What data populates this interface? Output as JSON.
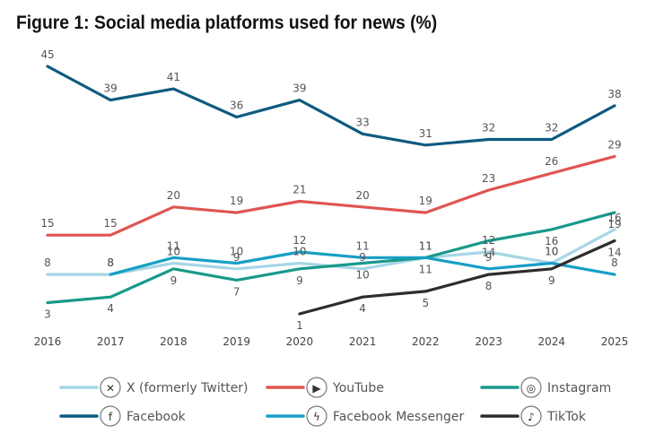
{
  "chart_data": {
    "type": "line",
    "title": "Figure 1: Social media platforms used for news (%)",
    "x": [
      "2016",
      "2017",
      "2018",
      "2019",
      "2020",
      "2021",
      "2022",
      "2023",
      "2024",
      "2025"
    ],
    "series": [
      {
        "name": "Facebook",
        "color": "#0e5a80",
        "values": [
          45,
          39,
          41,
          36,
          39,
          33,
          31,
          32,
          32,
          38
        ]
      },
      {
        "name": "YouTube",
        "color": "#e05552",
        "values": [
          15,
          15,
          20,
          19,
          21,
          20,
          19,
          23,
          26,
          29
        ]
      },
      {
        "name": "Instagram",
        "color": "#18998a",
        "values": [
          3,
          4,
          9,
          7,
          9,
          10,
          11,
          14,
          16,
          19
        ]
      },
      {
        "name": "X (formerly Twitter)",
        "color": "#a6d6e6",
        "values": [
          8,
          8,
          10,
          9,
          10,
          9,
          11,
          12,
          10,
          16
        ]
      },
      {
        "name": "Facebook Messenger",
        "color": "#179fc6",
        "values": [
          null,
          8,
          11,
          10,
          12,
          11,
          11,
          9,
          10,
          8
        ]
      },
      {
        "name": "TikTok",
        "color": "#2d2d2d",
        "values": [
          null,
          null,
          null,
          null,
          1,
          4,
          5,
          8,
          9,
          14
        ]
      }
    ],
    "legend": [
      {
        "name": "X (formerly Twitter)",
        "icon": "x-logo-icon",
        "color": "#a6d6e6"
      },
      {
        "name": "YouTube",
        "icon": "youtube-logo-icon",
        "color": "#e05552"
      },
      {
        "name": "Instagram",
        "icon": "instagram-logo-icon",
        "color": "#18998a"
      },
      {
        "name": "Facebook",
        "icon": "facebook-logo-icon",
        "color": "#0e5a80"
      },
      {
        "name": "Facebook Messenger",
        "icon": "messenger-logo-icon",
        "color": "#179fc6"
      },
      {
        "name": "TikTok",
        "icon": "tiktok-logo-icon",
        "color": "#2d2d2d"
      }
    ],
    "legend_placement": "bottom",
    "grid": false,
    "ylim": [
      0,
      46
    ]
  }
}
